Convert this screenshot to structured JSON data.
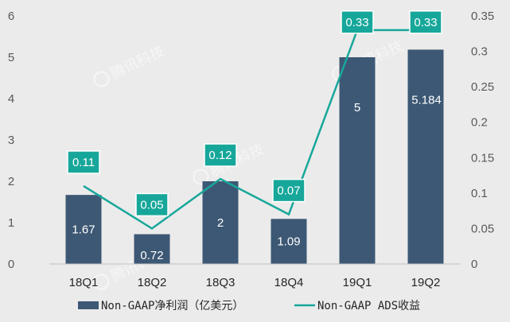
{
  "chart_data": {
    "type": "bar",
    "categories": [
      "18Q1",
      "18Q2",
      "18Q3",
      "18Q4",
      "19Q1",
      "19Q2"
    ],
    "series": [
      {
        "name": "Non-GAAP净利润（亿美元）",
        "kind": "bar",
        "axis": "left",
        "values": [
          1.67,
          0.72,
          2,
          1.09,
          5,
          5.184
        ],
        "labels": [
          "1.67",
          "0.72",
          "2",
          "1.09",
          "5",
          "5.184"
        ],
        "color": "#3d5874"
      },
      {
        "name": "Non-GAAP ADS收益",
        "kind": "line",
        "axis": "right",
        "values": [
          0.11,
          0.05,
          0.12,
          0.07,
          0.33,
          0.33
        ],
        "labels": [
          "0.11",
          "0.05",
          "0.12",
          "0.07",
          "0.33",
          "0.33"
        ],
        "color": "#17a79a"
      }
    ],
    "y_left": {
      "min": 0,
      "max": 6,
      "ticks": [
        "0",
        "1",
        "2",
        "3",
        "4",
        "5",
        "6"
      ]
    },
    "y_right": {
      "min": 0,
      "max": 0.35,
      "ticks": [
        "0",
        "0.05",
        "0.1",
        "0.15",
        "0.2",
        "0.25",
        "0.3",
        "0.35"
      ]
    },
    "grid": false,
    "legend_position": "bottom"
  },
  "watermark": {
    "text": "腾讯科技"
  },
  "colors": {
    "background": "#ebebeb",
    "bar": "#3d5874",
    "line": "#17a79a",
    "label_box": "#17a79a"
  }
}
